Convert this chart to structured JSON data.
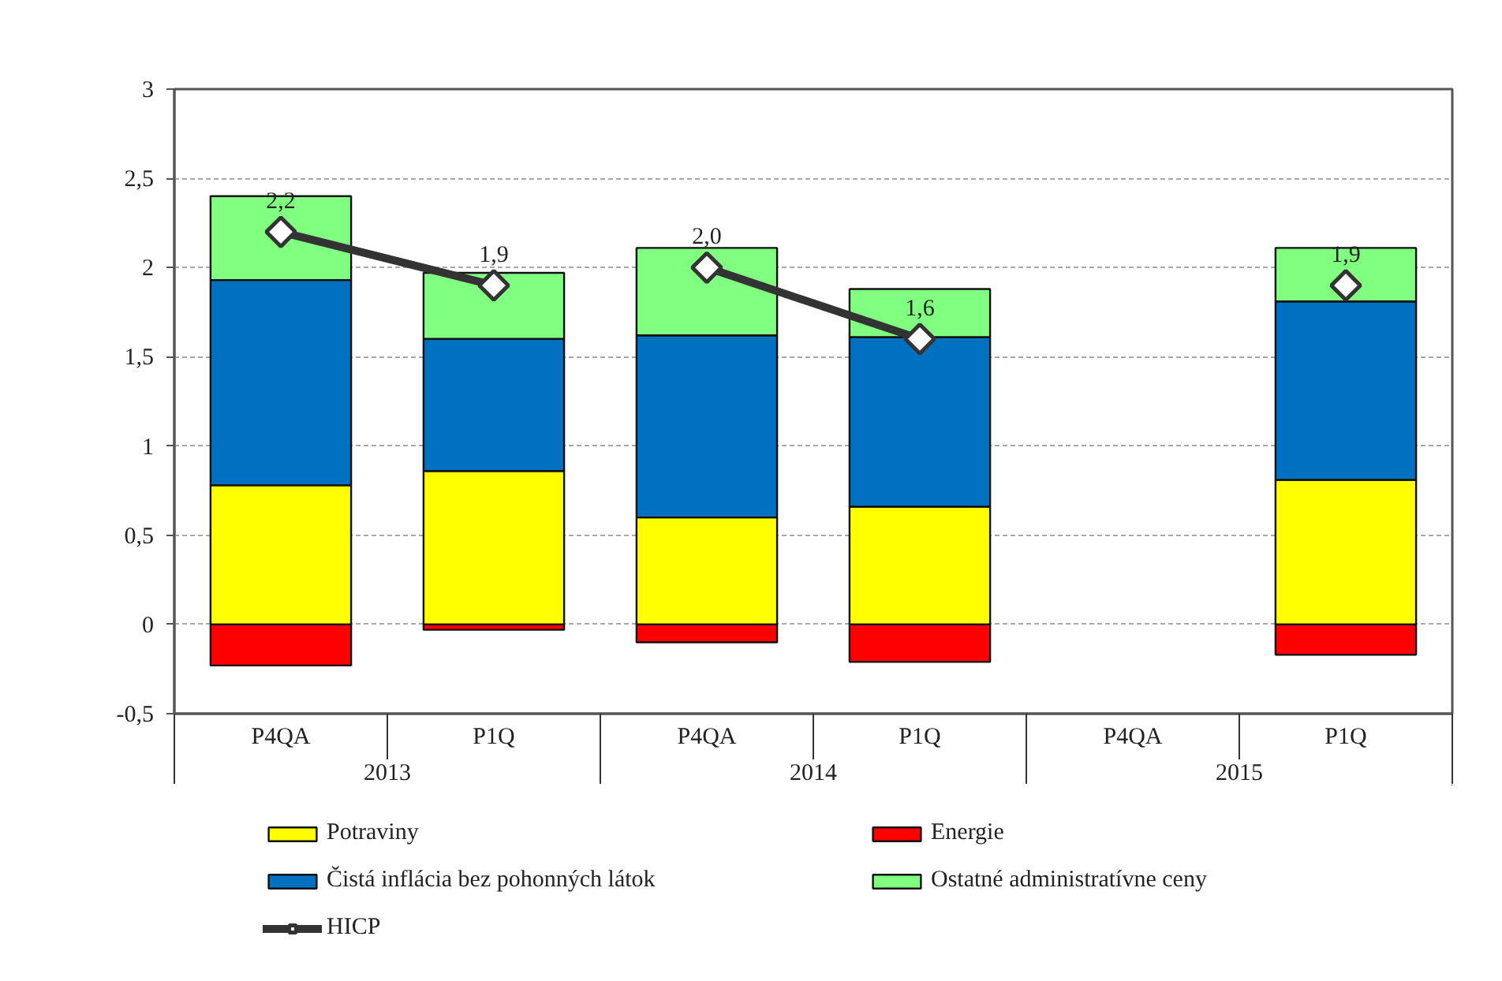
{
  "chart_data": {
    "type": "bar",
    "stacked": true,
    "categories": [
      "P4QA",
      "P1Q",
      "P4QA",
      "P1Q",
      "P4QA",
      "P1Q"
    ],
    "annotations": [
      "2013",
      "2014",
      "2015"
    ],
    "series": [
      {
        "name": "Potraviny",
        "color": "#ffff00",
        "values": [
          0.78,
          0.86,
          0.6,
          0.66,
          null,
          0.81
        ]
      },
      {
        "name": "Energie",
        "color": "#ff0000",
        "values": [
          -0.23,
          -0.03,
          -0.1,
          -0.21,
          null,
          -0.17
        ]
      },
      {
        "name": "Čistá inflácia bez pohonných látok",
        "color": "#0070c0",
        "values": [
          1.15,
          0.74,
          1.02,
          0.95,
          null,
          1.0
        ]
      },
      {
        "name": "Ostatné administratívne ceny",
        "color": "#80ff80",
        "values": [
          0.47,
          0.37,
          0.49,
          0.27,
          null,
          0.3
        ]
      },
      {
        "name": "HICP",
        "type": "line",
        "color": "#333333",
        "marker": "diamond",
        "line_style": "solid",
        "values": [
          2.2,
          1.9,
          2.0,
          1.6,
          null,
          1.9
        ],
        "value_labels": [
          "2,2",
          "1,9",
          "2,0",
          "1,6",
          null,
          "1,9"
        ]
      }
    ],
    "ylim": [
      -0.5,
      3
    ],
    "yticks": [
      {
        "value": -0.5,
        "label": "-0,5"
      },
      0,
      {
        "value": 0.5,
        "label": "0,5"
      },
      1,
      {
        "value": 1.5,
        "label": "1,5"
      },
      2,
      {
        "value": 2.5,
        "label": "2,5"
      },
      3
    ],
    "grid": "y",
    "legend": "bottom"
  }
}
